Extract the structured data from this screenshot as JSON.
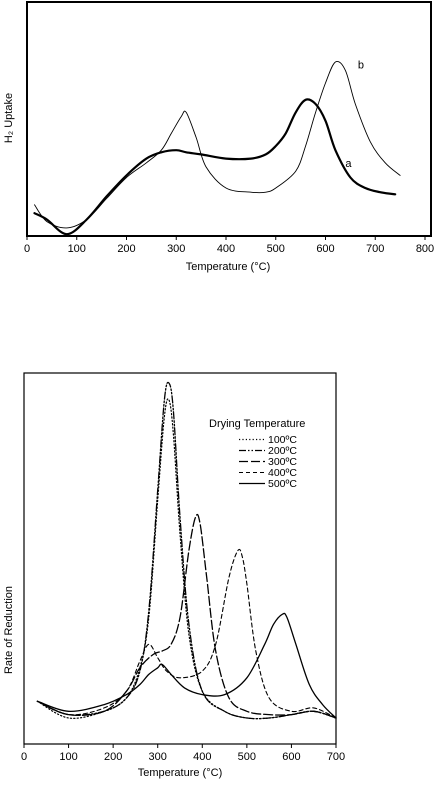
{
  "chart_data": [
    {
      "type": "line",
      "title": "",
      "xlabel": "Temperature (°C)",
      "ylabel": "H₂ Uptake",
      "xlim": [
        0,
        800
      ],
      "x_ticks": [
        0,
        100,
        200,
        300,
        400,
        500,
        600,
        700,
        800
      ],
      "y_ticks_visible": false,
      "grid": false,
      "legend": "none",
      "series": [
        {
          "name": "a",
          "style": "solid-thick",
          "color": "#000000",
          "x": [
            15,
            40,
            80,
            120,
            160,
            200,
            240,
            270,
            300,
            320,
            350,
            400,
            450,
            480,
            500,
            520,
            540,
            560,
            580,
            600,
            620,
            650,
            680,
            710,
            740
          ],
          "y": [
            0.08,
            0.05,
            -0.02,
            0.05,
            0.16,
            0.26,
            0.34,
            0.37,
            0.38,
            0.37,
            0.36,
            0.34,
            0.34,
            0.36,
            0.4,
            0.46,
            0.56,
            0.62,
            0.6,
            0.52,
            0.38,
            0.25,
            0.2,
            0.18,
            0.17
          ]
        },
        {
          "name": "b",
          "style": "thin",
          "color": "#000000",
          "x": [
            15,
            40,
            80,
            120,
            160,
            200,
            240,
            270,
            290,
            310,
            320,
            340,
            360,
            400,
            450,
            480,
            500,
            540,
            560,
            580,
            600,
            620,
            640,
            660,
            690,
            720,
            750
          ],
          "y": [
            0.12,
            0.04,
            0.01,
            0.05,
            0.15,
            0.25,
            0.32,
            0.38,
            0.46,
            0.54,
            0.56,
            0.44,
            0.3,
            0.2,
            0.18,
            0.18,
            0.2,
            0.28,
            0.4,
            0.56,
            0.7,
            0.8,
            0.76,
            0.6,
            0.42,
            0.32,
            0.26
          ]
        }
      ],
      "annotations": [
        {
          "text": "a",
          "x": 640,
          "y": 0.3
        },
        {
          "text": "b",
          "x": 665,
          "y": 0.77
        }
      ]
    },
    {
      "type": "line",
      "title": "",
      "xlabel": "Temperature (°C)",
      "ylabel": "Rate of Reduction",
      "xlim": [
        0,
        700
      ],
      "x_ticks": [
        0,
        100,
        200,
        300,
        400,
        500,
        600,
        700
      ],
      "y_ticks_visible": false,
      "grid": false,
      "legend": "right, inside",
      "legend_title": "Drying Temperature",
      "series": [
        {
          "name": "100ºC",
          "style": "dotted",
          "color": "#000000",
          "x": [
            30,
            100,
            180,
            230,
            260,
            280,
            300,
            315,
            325,
            335,
            350,
            370,
            400,
            450,
            500,
            550,
            600,
            650,
            700
          ],
          "y": [
            0.05,
            0.0,
            0.02,
            0.06,
            0.15,
            0.3,
            0.65,
            0.9,
            0.95,
            0.85,
            0.55,
            0.25,
            0.08,
            0.02,
            0.0,
            0.0,
            0.01,
            0.02,
            0.0
          ]
        },
        {
          "name": "200ºC",
          "style": "dash-dot-dot",
          "color": "#000000",
          "x": [
            30,
            100,
            180,
            230,
            260,
            280,
            300,
            315,
            325,
            335,
            350,
            370,
            400,
            450,
            500,
            550,
            600,
            650,
            700
          ],
          "y": [
            0.05,
            0.01,
            0.02,
            0.06,
            0.14,
            0.32,
            0.68,
            0.95,
            1.0,
            0.92,
            0.6,
            0.28,
            0.08,
            0.02,
            0.0,
            0.0,
            0.01,
            0.02,
            0.0
          ]
        },
        {
          "name": "300ºC",
          "style": "long-dash",
          "color": "#000000",
          "x": [
            30,
            100,
            180,
            230,
            260,
            290,
            310,
            330,
            350,
            370,
            385,
            395,
            410,
            430,
            460,
            500,
            550,
            600,
            650,
            700
          ],
          "y": [
            0.05,
            0.01,
            0.02,
            0.08,
            0.15,
            0.19,
            0.2,
            0.22,
            0.3,
            0.5,
            0.6,
            0.58,
            0.42,
            0.2,
            0.06,
            0.02,
            0.01,
            0.01,
            0.02,
            0.0
          ]
        },
        {
          "name": "400ºC",
          "style": "short-dash",
          "color": "#000000",
          "x": [
            30,
            100,
            180,
            230,
            260,
            280,
            300,
            320,
            350,
            400,
            430,
            460,
            480,
            490,
            500,
            520,
            550,
            600,
            650,
            700
          ],
          "y": [
            0.05,
            0.01,
            0.03,
            0.08,
            0.17,
            0.22,
            0.18,
            0.14,
            0.12,
            0.14,
            0.22,
            0.42,
            0.5,
            0.48,
            0.4,
            0.2,
            0.06,
            0.02,
            0.03,
            0.0
          ]
        },
        {
          "name": "500ºC",
          "style": "solid",
          "color": "#000000",
          "x": [
            30,
            100,
            180,
            230,
            260,
            280,
            300,
            310,
            330,
            360,
            400,
            450,
            500,
            540,
            560,
            580,
            590,
            610,
            640,
            670,
            700
          ],
          "y": [
            0.05,
            0.02,
            0.04,
            0.07,
            0.1,
            0.13,
            0.15,
            0.16,
            0.13,
            0.09,
            0.07,
            0.07,
            0.12,
            0.22,
            0.28,
            0.31,
            0.3,
            0.22,
            0.1,
            0.04,
            0.0
          ]
        }
      ]
    }
  ]
}
